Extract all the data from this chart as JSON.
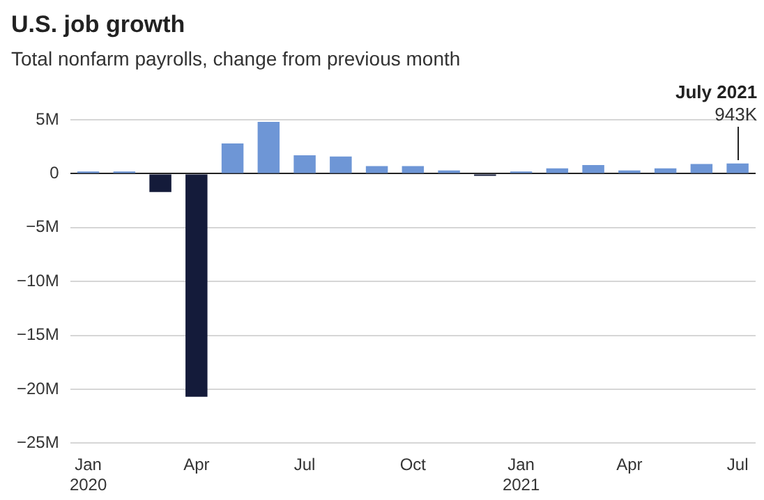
{
  "chart_data": {
    "type": "bar",
    "title": "U.S. job growth",
    "subtitle": "Total nonfarm payrolls, change from previous month",
    "categories": [
      "Jan 2020",
      null,
      null,
      "Apr",
      null,
      null,
      "Jul",
      null,
      null,
      "Oct",
      null,
      null,
      "Jan 2021",
      null,
      null,
      "Apr",
      null,
      null,
      "Jul"
    ],
    "values": [
      0.2,
      0.2,
      -1.7,
      -20.7,
      2.8,
      4.8,
      1.7,
      1.6,
      0.7,
      0.7,
      0.3,
      -0.2,
      0.2,
      0.5,
      0.8,
      0.3,
      0.5,
      0.9,
      0.94
    ],
    "colors": [
      "#6e96d6",
      "#6e96d6",
      "#141b3a",
      "#141b3a",
      "#6e96d6",
      "#6e96d6",
      "#6e96d6",
      "#6e96d6",
      "#6e96d6",
      "#6e96d6",
      "#6e96d6",
      "#141b3a",
      "#6e96d6",
      "#6e96d6",
      "#6e96d6",
      "#6e96d6",
      "#6e96d6",
      "#6e96d6",
      "#6e96d6"
    ],
    "annotations": [
      "July 2021",
      "943K"
    ],
    "ylim": [
      -25,
      5
    ],
    "yticks": [
      {
        "value": -25,
        "label": "−25M"
      },
      {
        "value": -20,
        "label": "−20M"
      },
      {
        "value": -15,
        "label": "−15M"
      },
      {
        "value": -10,
        "label": "−10M"
      },
      {
        "value": -5,
        "label": "−5M"
      },
      0,
      {
        "value": 5,
        "label": "5M"
      }
    ],
    "grid": "y",
    "legend": false
  }
}
